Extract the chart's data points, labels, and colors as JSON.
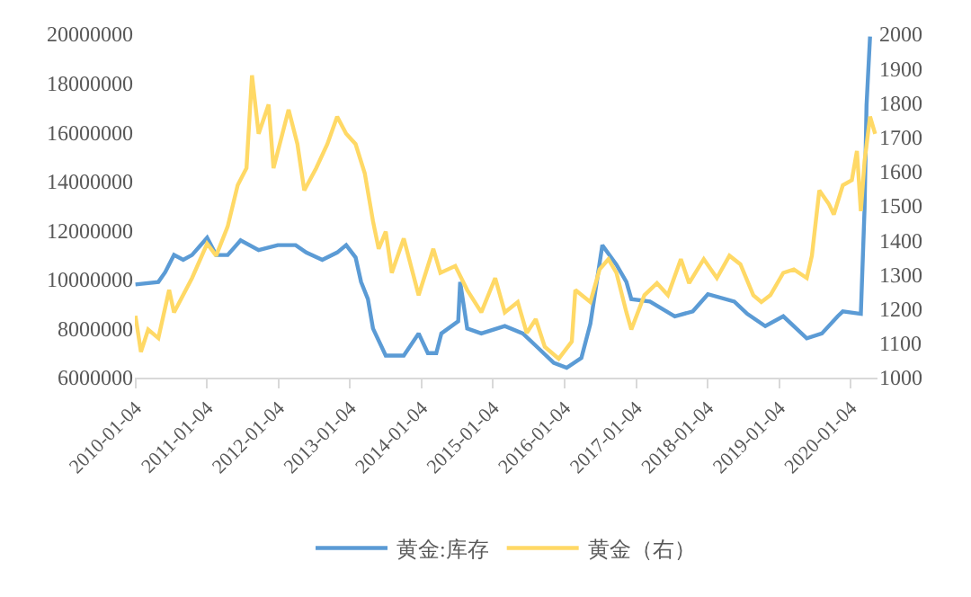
{
  "chart_data": {
    "type": "line",
    "xlim": [
      "2010-01-01",
      "2020-05-20"
    ],
    "xticks": [
      "2010-01-04",
      "2011-01-04",
      "2012-01-04",
      "2013-01-04",
      "2014-01-04",
      "2015-01-04",
      "2016-01-04",
      "2017-01-04",
      "2018-01-04",
      "2019-01-04",
      "2020-01-04"
    ],
    "ylim": [
      6000000,
      20000000
    ],
    "yticks": [
      6000000,
      8000000,
      10000000,
      12000000,
      14000000,
      16000000,
      18000000,
      20000000
    ],
    "y2lim": [
      1000,
      2000
    ],
    "y2ticks": [
      1000,
      1100,
      1200,
      1300,
      1400,
      1500,
      1600,
      1700,
      1800,
      1900,
      2000
    ],
    "grid": false,
    "legend": "bottom",
    "marker": "none",
    "line_style": "solid",
    "series": [
      {
        "name": "黄金:库存",
        "color": "#5b9bd5",
        "x": [
          "2010-01-04",
          "2010-05-01",
          "2010-06-05",
          "2010-07-20",
          "2010-09-05",
          "2010-10-20",
          "2011-01-05",
          "2011-02-20",
          "2011-04-20",
          "2011-06-25",
          "2011-09-25",
          "2012-01-01",
          "2012-04-01",
          "2012-05-25",
          "2012-08-15",
          "2012-10-30",
          "2012-12-15",
          "2013-02-01",
          "2013-03-01",
          "2013-04-05",
          "2013-05-01",
          "2013-07-05",
          "2013-10-05",
          "2013-12-20",
          "2014-02-05",
          "2014-03-20",
          "2014-04-15",
          "2014-07-10",
          "2014-07-20",
          "2014-08-25",
          "2014-11-05",
          "2015-03-05",
          "2015-06-05",
          "2015-08-10",
          "2015-11-10",
          "2016-01-15",
          "2016-03-30",
          "2016-05-15",
          "2016-07-15",
          "2016-09-25",
          "2016-11-15",
          "2016-12-10",
          "2017-03-15",
          "2017-07-20",
          "2017-10-20",
          "2018-01-05",
          "2018-05-20",
          "2018-07-25",
          "2018-10-25",
          "2019-01-25",
          "2019-05-25",
          "2019-08-10",
          "2019-10-30",
          "2019-11-25",
          "2020-02-25",
          "2020-03-15",
          "2020-03-25",
          "2020-04-12"
        ],
        "values": [
          9800000,
          9900000,
          10300000,
          11000000,
          10800000,
          11000000,
          11700000,
          11000000,
          11000000,
          11600000,
          11200000,
          11400000,
          11400000,
          11100000,
          10800000,
          11100000,
          11400000,
          10900000,
          9900000,
          9200000,
          8000000,
          6900000,
          6900000,
          7800000,
          7000000,
          7000000,
          7800000,
          8300000,
          9900000,
          8000000,
          7800000,
          8100000,
          7800000,
          7300000,
          6600000,
          6400000,
          6800000,
          8200000,
          11400000,
          10600000,
          9900000,
          9200000,
          9100000,
          8500000,
          8700000,
          9400000,
          9100000,
          8600000,
          8100000,
          8500000,
          7600000,
          7800000,
          8500000,
          8700000,
          8600000,
          12900000,
          17100000,
          19900000
        ]
      },
      {
        "name": "黄金（右）",
        "color": "#ffd966",
        "axis": "y2",
        "x": [
          "2010-01-04",
          "2010-02-01",
          "2010-03-10",
          "2010-05-01",
          "2010-06-25",
          "2010-07-20",
          "2010-10-20",
          "2011-01-05",
          "2011-02-20",
          "2011-04-20",
          "2011-06-10",
          "2011-07-25",
          "2011-08-22",
          "2011-09-25",
          "2011-11-15",
          "2011-12-10",
          "2012-02-25",
          "2012-04-10",
          "2012-05-15",
          "2012-07-15",
          "2012-09-10",
          "2012-10-30",
          "2012-12-15",
          "2013-02-01",
          "2013-03-20",
          "2013-05-01",
          "2013-05-30",
          "2013-07-05",
          "2013-08-05",
          "2013-10-05",
          "2013-12-20",
          "2014-03-05",
          "2014-04-10",
          "2014-06-25",
          "2014-08-25",
          "2014-11-05",
          "2015-01-15",
          "2015-03-05",
          "2015-05-10",
          "2015-06-25",
          "2015-08-10",
          "2015-09-25",
          "2015-12-05",
          "2016-02-10",
          "2016-02-28",
          "2016-05-15",
          "2016-07-01",
          "2016-08-15",
          "2016-09-25",
          "2016-11-15",
          "2016-12-10",
          "2017-02-15",
          "2017-04-20",
          "2017-06-15",
          "2017-08-20",
          "2017-10-01",
          "2017-12-15",
          "2018-02-20",
          "2018-04-25",
          "2018-06-20",
          "2018-08-25",
          "2018-10-05",
          "2018-11-20",
          "2019-01-25",
          "2019-03-20",
          "2019-05-25",
          "2019-06-20",
          "2019-07-28",
          "2019-09-15",
          "2019-10-10",
          "2019-11-25",
          "2020-01-10",
          "2020-02-05",
          "2020-02-25",
          "2020-03-15",
          "2020-04-12",
          "2020-05-08"
        ],
        "values": [
          1180,
          1075,
          1140,
          1115,
          1255,
          1190,
          1290,
          1390,
          1355,
          1440,
          1560,
          1610,
          1880,
          1710,
          1795,
          1610,
          1780,
          1680,
          1545,
          1610,
          1680,
          1760,
          1710,
          1680,
          1595,
          1455,
          1375,
          1425,
          1305,
          1405,
          1240,
          1375,
          1305,
          1325,
          1255,
          1190,
          1290,
          1190,
          1220,
          1130,
          1170,
          1090,
          1055,
          1105,
          1255,
          1220,
          1315,
          1345,
          1305,
          1190,
          1140,
          1240,
          1275,
          1240,
          1345,
          1275,
          1345,
          1290,
          1355,
          1330,
          1240,
          1220,
          1240,
          1305,
          1315,
          1290,
          1355,
          1545,
          1505,
          1475,
          1560,
          1575,
          1660,
          1485,
          1630,
          1760,
          1710
        ]
      }
    ]
  }
}
